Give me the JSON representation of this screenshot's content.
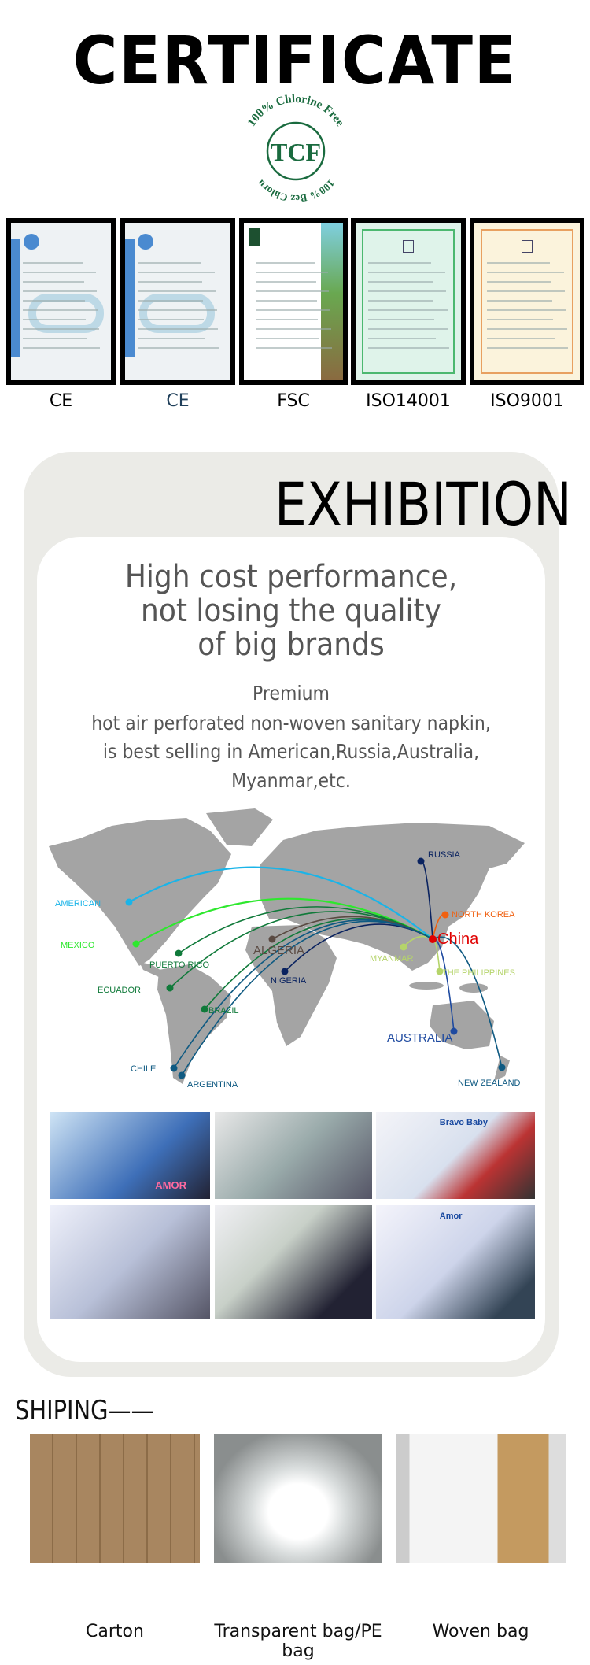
{
  "certificate": {
    "title": "CERTIFICATE",
    "tcf_logo": {
      "top_text": "100% Chlorine Free",
      "center_text": "TCF",
      "bottom_text": "100% Bez Chloru",
      "color": "#1a6b3f"
    },
    "items": [
      {
        "label": "CE",
        "label_color": "#000000",
        "tint": "#eef2f4"
      },
      {
        "label": "CE",
        "label_color": "#1f3f5a",
        "tint": "#eef2f4"
      },
      {
        "label": "FSC",
        "label_color": "#000000",
        "tint": "#ffffff"
      },
      {
        "label": "ISO14001",
        "label_color": "#000000",
        "tint": "#dff3ea"
      },
      {
        "label": "ISO9001",
        "label_color": "#000000",
        "tint": "#fbf3dc"
      }
    ]
  },
  "exhibition": {
    "title": "EXHIBITION",
    "headline": [
      "High cost performance,",
      "not losing the quality",
      "of big brands"
    ],
    "description": [
      "Premium",
      "hot air perforated non-woven sanitary napkin,",
      "is best selling in American,Russia,Australia,",
      "Myanmar,etc."
    ],
    "map": {
      "origin": {
        "label": "China",
        "color": "#e00000"
      },
      "destinations": [
        {
          "label": "RUSSIA",
          "color": "#0a2360"
        },
        {
          "label": "AMERICAN",
          "color": "#1ab4e8"
        },
        {
          "label": "MEXICO",
          "color": "#2ee82e"
        },
        {
          "label": "PUERTO RICO",
          "color": "#107a3a"
        },
        {
          "label": "ECUADOR",
          "color": "#107a3a"
        },
        {
          "label": "BRAZIL",
          "color": "#107a3a"
        },
        {
          "label": "ALGERIA",
          "color": "#5a4a42"
        },
        {
          "label": "NIGERIA",
          "color": "#0a2360"
        },
        {
          "label": "MYANMAR",
          "color": "#b5d46a"
        },
        {
          "label": "THE PHILIPPINES",
          "color": "#b5d46a"
        },
        {
          "label": "NORTH KOREA",
          "color": "#f06010"
        },
        {
          "label": "AUSTRALIA",
          "color": "#1e4aa0"
        },
        {
          "label": "NEW ZEALAND",
          "color": "#0f5a82"
        },
        {
          "label": "CHILE",
          "color": "#0f5a82"
        },
        {
          "label": "ARGENTINA",
          "color": "#0f5a82"
        }
      ]
    },
    "photo_booth_signs": [
      "AMOR",
      "Bravo Baby",
      "Amor"
    ]
  },
  "shipping": {
    "title": "SHIPING——",
    "items": [
      {
        "label": "Carton"
      },
      {
        "label": "Transparent bag/PE bag"
      },
      {
        "label": "Woven bag"
      }
    ]
  }
}
